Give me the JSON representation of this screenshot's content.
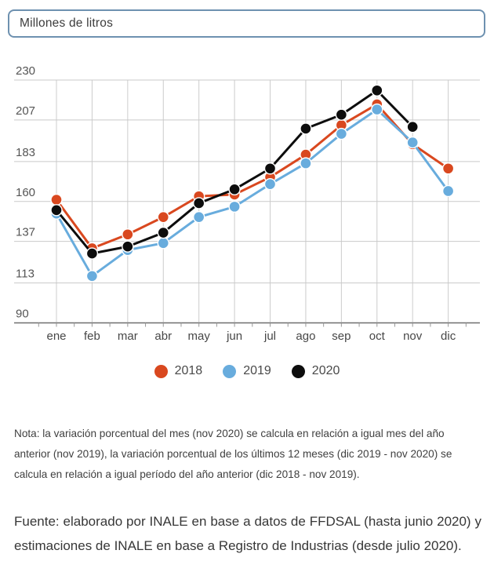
{
  "header": {
    "unit_label": "Millones de litros"
  },
  "chart_data": {
    "type": "line",
    "title": "Millones de litros",
    "categories": [
      "ene",
      "feb",
      "mar",
      "abr",
      "may",
      "jun",
      "jul",
      "ago",
      "sep",
      "oct",
      "nov",
      "dic"
    ],
    "series": [
      {
        "name": "2018",
        "color": "#d9481f",
        "values": [
          161,
          133,
          141,
          151,
          163,
          164,
          174,
          187,
          204,
          216,
          193,
          179
        ]
      },
      {
        "name": "2019",
        "color": "#68acdd",
        "values": [
          153,
          117,
          132,
          136,
          151,
          157,
          170,
          182,
          199,
          213,
          194,
          166
        ]
      },
      {
        "name": "2020",
        "color": "#0d0d0d",
        "values": [
          155,
          130,
          134,
          142,
          159,
          167,
          179,
          202,
          210,
          224,
          203,
          null
        ]
      }
    ],
    "ylabel": "Millones de litros",
    "yticks": [
      90,
      113,
      137,
      160,
      183,
      207,
      230
    ],
    "ylim": [
      90,
      230
    ],
    "grid": true,
    "legend_position": "bottom"
  },
  "notes": {
    "nota": "Nota: la variación porcentual del mes (nov 2020) se calcula en relación a igual mes del año anterior (nov 2019), la variación porcentual de los últimos 12 meses (dic 2019 - nov 2020) se calcula en relación a igual período del año anterior (dic 2018 - nov 2019).",
    "fuente": "Fuente: elaborado por INALE en base a datos de FFDSAL (hasta junio 2020) y estimaciones de INALE en base a Registro de Industrias (desde julio 2020)."
  }
}
